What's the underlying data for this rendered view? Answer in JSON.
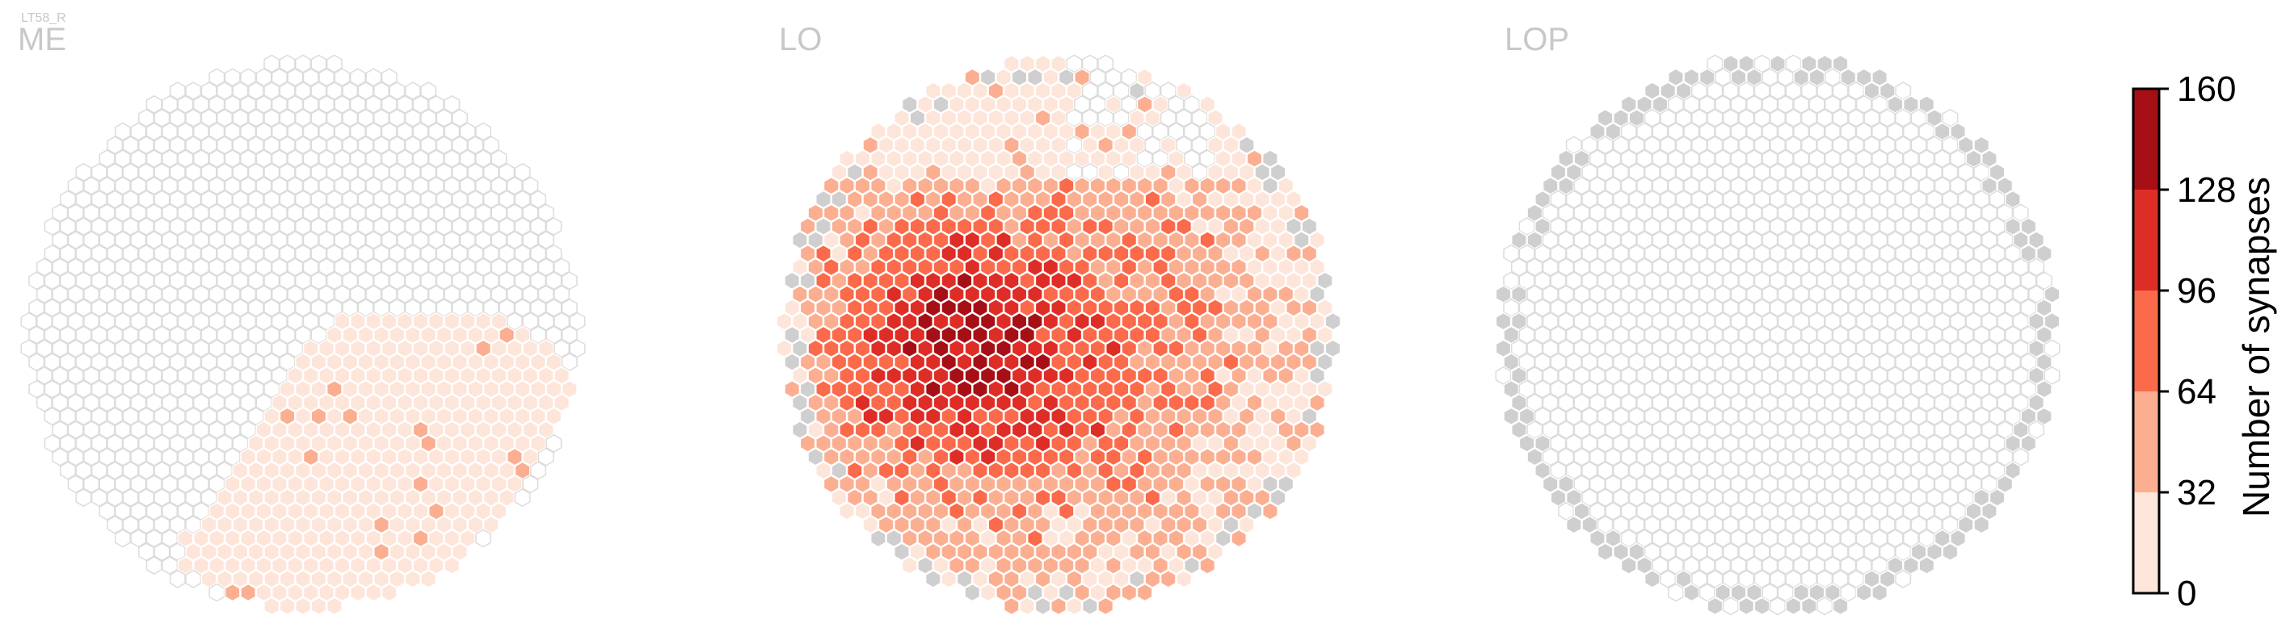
{
  "cell_type": "LT58_R",
  "chart_data": {
    "type": "heatmap",
    "subtype": "hexagonal-column-map",
    "panels": [
      {
        "name": "ME",
        "synapse_summary": "faint counts (0–32 bin) in a band across the lower-right quadrant; a few cells in the 32–64 bin"
      },
      {
        "name": "LO",
        "synapse_summary": "most columns innervated; densest (96–160) left of center, 32–96 across the middle, outer rim 0–32; a few uninnervated (grey) columns at the edge"
      },
      {
        "name": "LOP",
        "synapse_summary": "no synapses; all columns empty with a ring of grey columns along the perimeter"
      }
    ],
    "colorbar": {
      "label": "Number of synapses",
      "ticks": [
        0,
        32,
        64,
        96,
        128,
        160
      ],
      "range": [
        0,
        160
      ],
      "bins": [
        {
          "range": [
            0,
            32
          ],
          "color": "#fee5d9"
        },
        {
          "range": [
            32,
            64
          ],
          "color": "#fcae91"
        },
        {
          "range": [
            64,
            96
          ],
          "color": "#fb6a4a"
        },
        {
          "range": [
            96,
            128
          ],
          "color": "#de2d26"
        },
        {
          "range": [
            128,
            160
          ],
          "color": "#a50f15"
        }
      ]
    },
    "colors": {
      "empty_cell_stroke": "#dcdcdc",
      "zero_cell_fill": "#cfcfcf",
      "title_color": "#c8c8c8"
    }
  }
}
